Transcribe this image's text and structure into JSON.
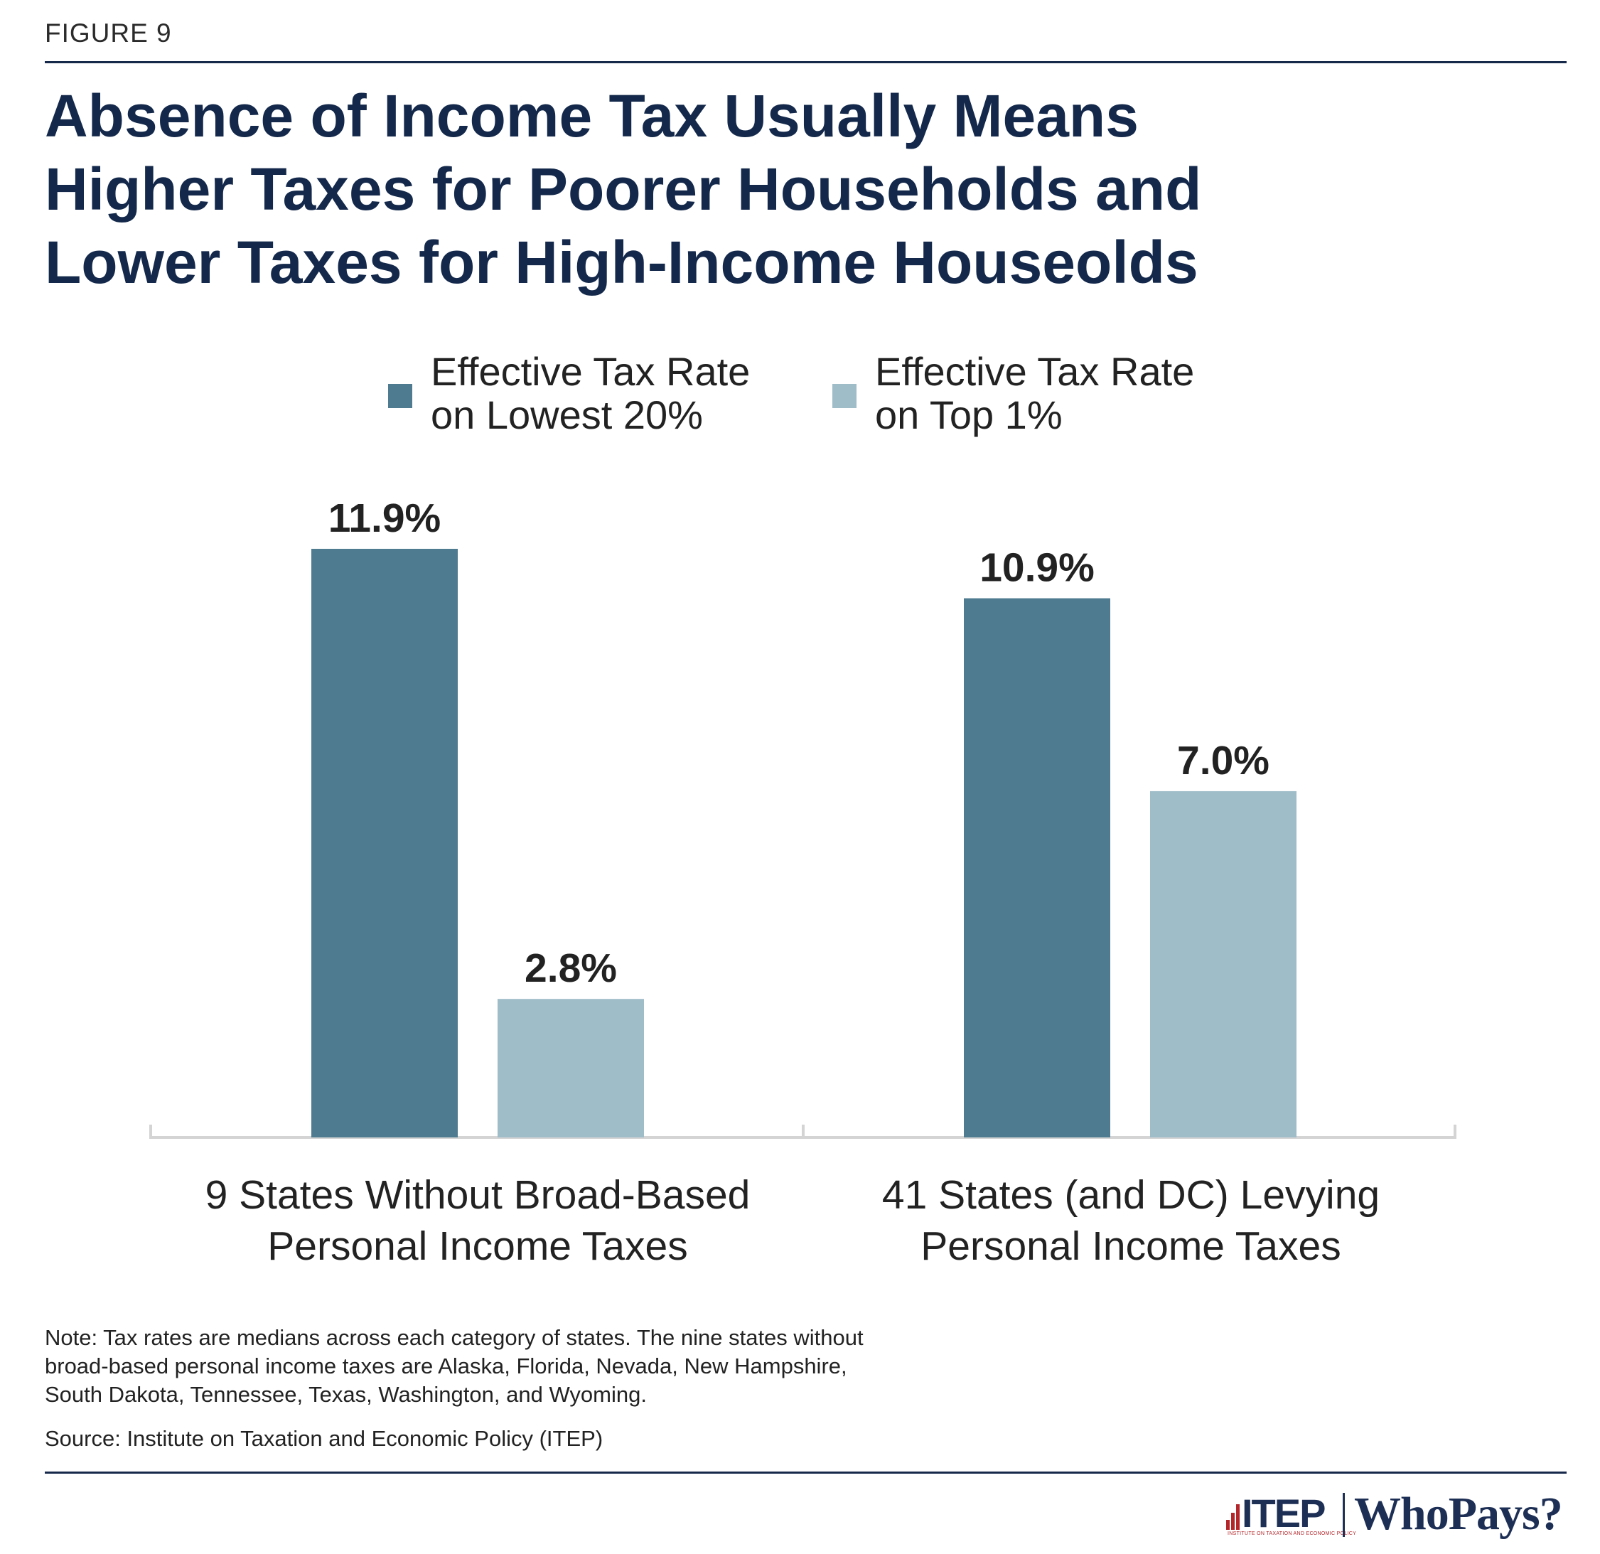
{
  "figure_label": "FIGURE 9",
  "title_lines": [
    "Absence of Income Tax Usually Means",
    "Higher Taxes for Poorer Households and",
    "Lower Taxes for High-Income Houseolds"
  ],
  "colors": {
    "series_low": "#4e7b90",
    "series_top": "#9fbcc9",
    "title": "#13284a",
    "axis": "#d4d4d4"
  },
  "chart_data": {
    "type": "bar",
    "title": "Absence of Income Tax Usually Means Higher Taxes for Poorer Households and Lower Taxes for High-Income Houseolds",
    "categories": [
      "9 States Without Broad-Based Personal Income Taxes",
      "41 States (and DC) Levying Personal Income Taxes"
    ],
    "category_label_lines": [
      [
        "9 States Without Broad-Based",
        "Personal Income Taxes"
      ],
      [
        "41 States (and DC) Levying",
        "Personal Income Taxes"
      ]
    ],
    "series": [
      {
        "name": "Effective Tax Rate on Lowest 20%",
        "legend_lines": [
          "Effective Tax Rate",
          "on Lowest 20%"
        ],
        "values": [
          11.9,
          10.9
        ],
        "labels": [
          "11.9%",
          "10.9%"
        ],
        "color": "#4e7b90"
      },
      {
        "name": "Effective Tax Rate on Top 1%",
        "legend_lines": [
          "Effective Tax Rate",
          "on Top 1%"
        ],
        "values": [
          2.8,
          7.0
        ],
        "labels": [
          "2.8%",
          "7.0%"
        ],
        "color": "#9fbcc9"
      }
    ],
    "ylim": [
      0,
      11.9
    ],
    "xlabel": "",
    "ylabel": "",
    "grid": false,
    "legend_position": "top-center"
  },
  "note_lines": [
    "Note: Tax rates are medians across each category of states. The nine states without",
    "broad-based personal income taxes are Alaska, Florida, Nevada, New Hampshire,",
    "South Dakota, Tennessee, Texas, Washington, and Wyoming."
  ],
  "source": "Source: Institute on Taxation and Economic Policy (ITEP)",
  "logo": {
    "itep": "ITEP",
    "itep_sub": "INSTITUTE ON TAXATION AND ECONOMIC POLICY",
    "whopays": "WhoPays?"
  }
}
